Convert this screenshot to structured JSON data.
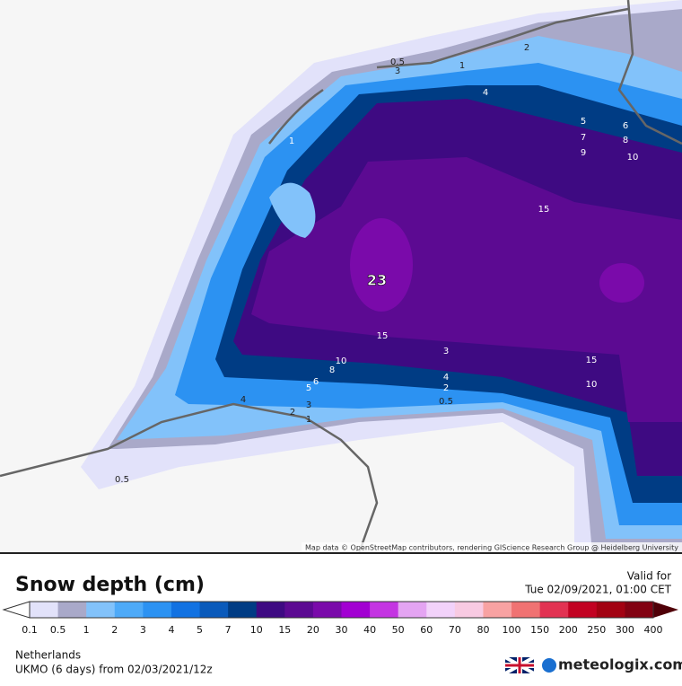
{
  "map": {
    "attribution": "Map data © OpenStreetMap contributors, rendering GIScience Research Group @ Heidelberg University",
    "contour_labels": [
      "0.5",
      "3",
      "1",
      "2",
      "1",
      "4",
      "5",
      "6",
      "7",
      "8",
      "9",
      "10",
      "15",
      "23",
      "15",
      "10",
      "8",
      "6",
      "5",
      "4",
      "3",
      "2",
      "1",
      "15",
      "10",
      "3",
      "4",
      "2",
      "0.5",
      "0.5"
    ]
  },
  "title": "Snow depth (cm)",
  "valid": {
    "label": "Valid for",
    "time": "Tue 02/09/2021, 01:00 CET"
  },
  "colorbar": {
    "labels": [
      "0.1",
      "0.5",
      "1",
      "2",
      "3",
      "4",
      "5",
      "7",
      "10",
      "15",
      "20",
      "30",
      "40",
      "50",
      "60",
      "70",
      "80",
      "100",
      "150",
      "200",
      "250",
      "300",
      "400"
    ],
    "colors": [
      "#e2e2fa",
      "#a9a9c9",
      "#82c2fa",
      "#4eaaf8",
      "#2c92f2",
      "#1272e2",
      "#0a5abb",
      "#003c84",
      "#3e0a82",
      "#5c0a92",
      "#7a0aaa",
      "#a200d2",
      "#c434e2",
      "#e4a4f2",
      "#f2d2fa",
      "#f8cae2",
      "#f8a2a2",
      "#f07272",
      "#e23252",
      "#c20222",
      "#a20212",
      "#820212"
    ]
  },
  "footer": {
    "region": "Netherlands",
    "model": "UKMO (6 days)  from  02/03/2021/12z"
  },
  "brand": "meteologix.com"
}
